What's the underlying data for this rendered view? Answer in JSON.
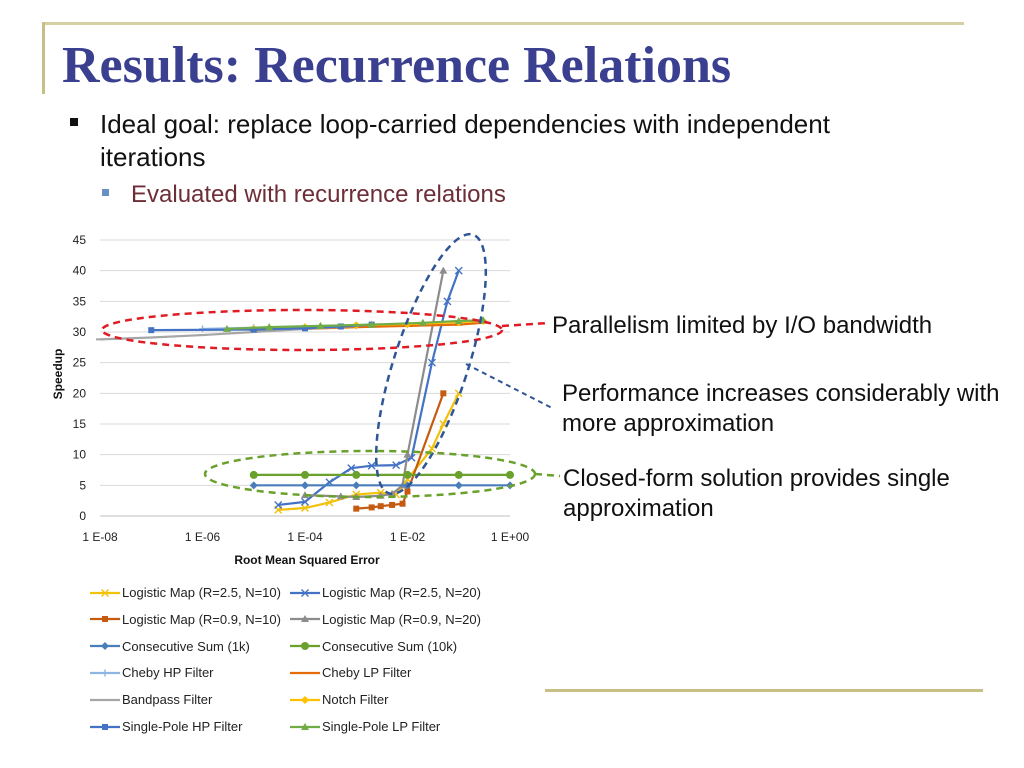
{
  "slide": {
    "title": "Results: Recurrence Relations",
    "bullet1": "Ideal goal: replace loop-carried dependencies with independent iterations",
    "bullet2": "Evaluated with recurrence relations"
  },
  "callouts": {
    "parallelism": "Parallelism limited by I/O bandwidth",
    "performance": "Performance increases considerably with more approximation",
    "closed_form": "Closed-form solution provides single approximation"
  },
  "chart_data": {
    "type": "scatter",
    "title": "",
    "xlabel": "Root Mean Squared Error",
    "ylabel": "Speedup",
    "x_scale": "log",
    "xlim": [
      1e-08,
      1
    ],
    "ylim": [
      0,
      45
    ],
    "x_ticks": [
      "1 E-08",
      "1 E-06",
      "1 E-04",
      "1 E-02",
      "1 E+00"
    ],
    "y_ticks": [
      "0",
      "5",
      "10",
      "15",
      "20",
      "25",
      "30",
      "35",
      "40",
      "45"
    ],
    "grid": true,
    "legend_position": "bottom",
    "series": [
      {
        "name": "Logistic Map (R=2.5, N=10)",
        "color": "#f2c10a",
        "marker": "x",
        "x": [
          3e-05,
          0.0001,
          0.0003,
          0.001,
          0.003,
          0.006,
          0.01,
          0.03,
          0.05,
          0.1
        ],
        "y": [
          1,
          1.3,
          2.2,
          3.5,
          3.8,
          3.5,
          6,
          11,
          15,
          20
        ]
      },
      {
        "name": "Logistic Map (R=2.5, N=20)",
        "color": "#4472c4",
        "marker": "x",
        "x": [
          3e-05,
          0.0001,
          0.0003,
          0.0008,
          0.002,
          0.006,
          0.012,
          0.03,
          0.06,
          0.1
        ],
        "y": [
          1.8,
          2.3,
          5.5,
          7.8,
          8.2,
          8.3,
          9.5,
          25,
          35,
          40
        ]
      },
      {
        "name": "Logistic Map (R=0.9, N=10)",
        "color": "#c55a11",
        "marker": "square",
        "x": [
          0.001,
          0.002,
          0.003,
          0.005,
          0.008,
          0.01,
          0.05
        ],
        "y": [
          1.2,
          1.4,
          1.6,
          1.8,
          2,
          4,
          20
        ]
      },
      {
        "name": "Logistic Map (R=0.9, N=20)",
        "color": "#8c8c8c",
        "marker": "triangle",
        "x": [
          0.0001,
          0.0005,
          0.001,
          0.003,
          0.005,
          0.008,
          0.01,
          0.05
        ],
        "y": [
          3.4,
          3.2,
          3.1,
          3.3,
          3.6,
          5,
          10,
          40
        ]
      },
      {
        "name": "Consecutive Sum (1k)",
        "color": "#4a7ebb",
        "marker": "diamond",
        "x": [
          1e-05,
          0.0001,
          0.001,
          0.01,
          0.1,
          1
        ],
        "y": [
          5,
          5,
          5,
          5,
          5,
          5
        ]
      },
      {
        "name": "Consecutive Sum (10k)",
        "color": "#6aa12c",
        "marker": "circle",
        "x": [
          1e-05,
          0.0001,
          0.001,
          0.01,
          0.1,
          1
        ],
        "y": [
          6.7,
          6.7,
          6.7,
          6.7,
          6.7,
          6.7
        ]
      },
      {
        "name": "Cheby HP Filter",
        "color": "#8eb4e3",
        "marker": "plus",
        "x": [
          1e-06,
          1e-05,
          0.0001,
          0.001,
          0.01
        ],
        "y": [
          30.5,
          30.7,
          30.8,
          31,
          31.2
        ]
      },
      {
        "name": "Cheby LP Filter",
        "color": "#e36c09",
        "marker": "dash",
        "x": [
          1e-05,
          0.0001,
          0.001,
          0.01,
          0.1,
          0.3
        ],
        "y": [
          30.2,
          30.5,
          30.8,
          31,
          31.2,
          31.5
        ]
      },
      {
        "name": "Bandpass Filter",
        "color": "#a6a6a6",
        "marker": "dash",
        "x": [
          1e-08,
          1e-07,
          1e-06,
          1e-05,
          0.0001,
          0.001
        ],
        "y": [
          28.8,
          29.1,
          29.5,
          30,
          30.5,
          31
        ]
      },
      {
        "name": "Notch Filter",
        "color": "#ffc000",
        "marker": "diamond",
        "x": [
          1e-05,
          0.0001,
          0.001,
          0.01,
          0.1,
          0.3
        ],
        "y": [
          30.5,
          30.8,
          31.1,
          31.3,
          31.6,
          31.8
        ]
      },
      {
        "name": "Single-Pole HP Filter",
        "color": "#4472c4",
        "marker": "square",
        "x": [
          1e-07,
          1e-05,
          0.0001,
          0.0005,
          0.002
        ],
        "y": [
          30.3,
          30.4,
          30.6,
          30.9,
          31.2
        ]
      },
      {
        "name": "Single-Pole LP Filter",
        "color": "#70ad47",
        "marker": "triangle",
        "x": [
          3e-06,
          2e-05,
          0.0002,
          0.002,
          0.02,
          0.1,
          0.3
        ],
        "y": [
          30.5,
          30.8,
          31,
          31.2,
          31.5,
          31.8,
          31.9
        ]
      }
    ]
  },
  "colors": {
    "title": "#3a3f8f",
    "sub_bullet_text": "#6d2e38",
    "red_ellipse": "#e01b24",
    "blue_ellipse": "#2f5597",
    "green_ellipse": "#6aa12c",
    "accent_line": "#c8bf86"
  }
}
